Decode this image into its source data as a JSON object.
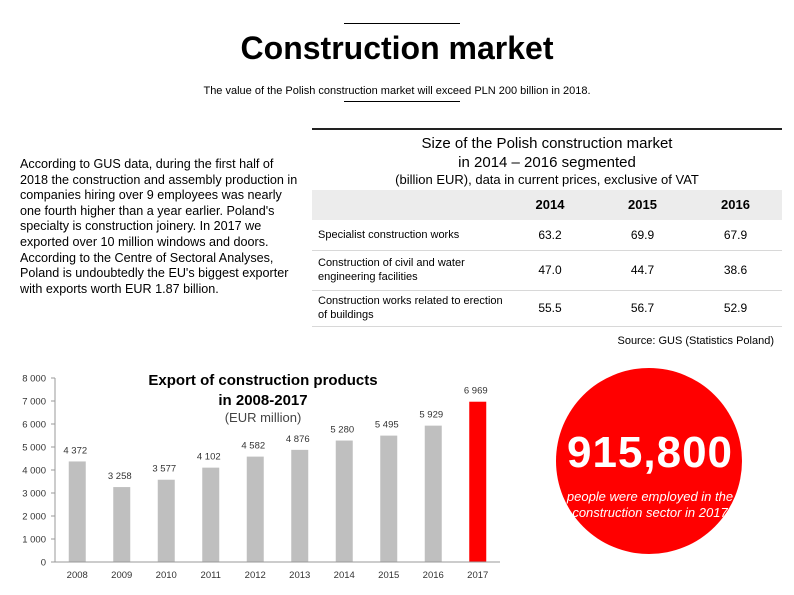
{
  "header": {
    "title": "Construction market",
    "subtitle": "The value of the Polish construction market will exceed PLN 200 billion in 2018."
  },
  "intro_text": "According to GUS data, during the first half of 2018 the construction and assembly production in companies hiring over 9 employees was nearly one fourth higher than a year earlier. Poland's specialty is construction joinery. In 2017 we exported over 10 million windows and doors. According to the Centre of Sectoral Analyses, Poland is undoubtedly the EU's biggest exporter with exports worth EUR 1.87 billion.",
  "table": {
    "title_line1": "Size of the Polish construction market",
    "title_line2": "in 2014 – 2016 segmented",
    "units": "(billion EUR), data in current prices, exclusive of VAT",
    "columns": [
      "2014",
      "2015",
      "2016"
    ],
    "rows": [
      {
        "label": "Specialist construction works",
        "values": [
          "63.2",
          "69.9",
          "67.9"
        ]
      },
      {
        "label": "Construction of civil and water engineering facilities",
        "values": [
          "47.0",
          "44.7",
          "38.6"
        ]
      },
      {
        "label": "Construction works related to erection of buildings",
        "values": [
          "55.5",
          "56.7",
          "52.9"
        ]
      }
    ],
    "source": "Source: GUS (Statistics Poland)"
  },
  "chart_data": {
    "type": "bar",
    "title_line1": "Export of construction products",
    "title_line2": "in 2008-2017",
    "subtitle": "(EUR million)",
    "categories": [
      "2008",
      "2009",
      "2010",
      "2011",
      "2012",
      "2013",
      "2014",
      "2015",
      "2016",
      "2017"
    ],
    "values": [
      4372,
      3258,
      3577,
      4102,
      4582,
      4876,
      5280,
      5495,
      5929,
      6969
    ],
    "value_labels": [
      "4 372",
      "3 258",
      "3 577",
      "4 102",
      "4 582",
      "4 876",
      "5 280",
      "5 495",
      "5 929",
      "6 969"
    ],
    "y_ticks": [
      0,
      1000,
      2000,
      3000,
      4000,
      5000,
      6000,
      7000,
      8000
    ],
    "y_tick_labels": [
      "0",
      "1 000",
      "2 000",
      "3 000",
      "4 000",
      "5 000",
      "6 000",
      "7 000",
      "8 000"
    ],
    "ylim": [
      0,
      8000
    ],
    "bar_color": "#bfbfbf",
    "highlight_color": "#ff0000",
    "highlight_index": 9
  },
  "stat": {
    "number": "915,800",
    "caption": "people were employed in the construction sector in 2017",
    "color": "#ff0000"
  }
}
